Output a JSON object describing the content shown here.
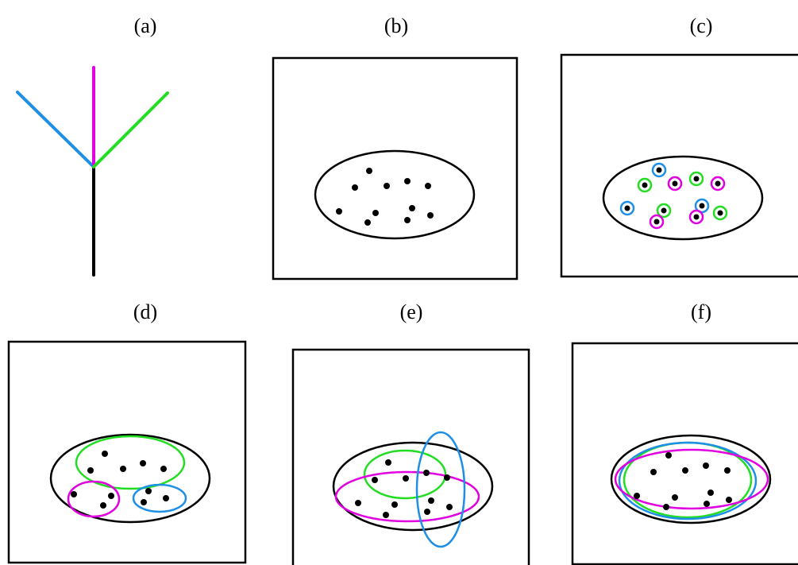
{
  "panels": [
    {
      "id": "a",
      "label": "(a)"
    },
    {
      "id": "b",
      "label": "(b)"
    },
    {
      "id": "c",
      "label": "(c)"
    },
    {
      "id": "d",
      "label": "(d)"
    },
    {
      "id": "e",
      "label": "(e)"
    },
    {
      "id": "f",
      "label": "(f)"
    }
  ],
  "colors": {
    "blue": "#1e8fe6",
    "magenta": "#e000e0",
    "green": "#22dd22",
    "black": "#000000"
  }
}
